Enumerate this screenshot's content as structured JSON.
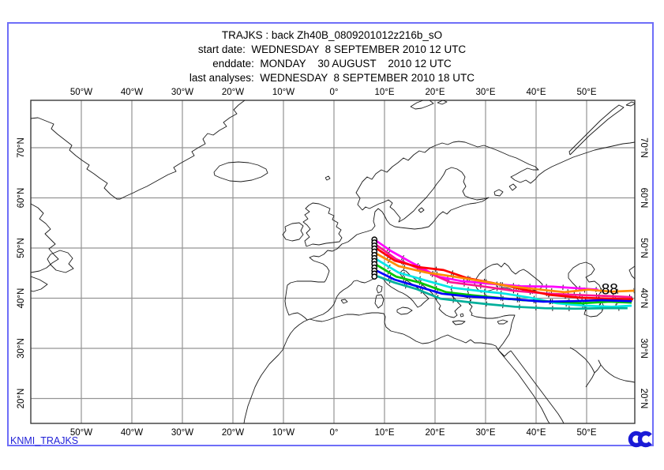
{
  "header": {
    "title": "TRAJKS : back Zh40B_0809201012z216b_sO",
    "start_date": "start date:  WEDNESDAY  8 SEPTEMBER 2010 12 UTC",
    "end_date": "enddate:  MONDAY    30 AUGUST    2010 12 UTC",
    "last_analyses": "last analyses:  WEDNESDAY  8 SEPTEMBER 2010 18 UTC"
  },
  "footer": {
    "model_id": "KNMI_TRAJKS",
    "logo_icon": "ecmwf-logo"
  },
  "colors": {
    "border": "#6e6ef8",
    "footer_text": "#1f1fd6",
    "grid": "#949494",
    "frame": "#3a3a3a",
    "coast": "#1a1a1a",
    "logo": "#1a1ad6",
    "tick_marks": "#111111"
  },
  "map": {
    "lon_ticks": [
      {
        "deg": -50,
        "label": "50°W"
      },
      {
        "deg": -40,
        "label": "40°W"
      },
      {
        "deg": -30,
        "label": "30°W"
      },
      {
        "deg": -20,
        "label": "20°W"
      },
      {
        "deg": -10,
        "label": "10°W"
      },
      {
        "deg": 0,
        "label": "0°"
      },
      {
        "deg": 10,
        "label": "10°E"
      },
      {
        "deg": 20,
        "label": "20°E"
      },
      {
        "deg": 30,
        "label": "30°E"
      },
      {
        "deg": 40,
        "label": "40°E"
      },
      {
        "deg": 50,
        "label": "50°E"
      }
    ],
    "lat_ticks": [
      {
        "deg": 70,
        "label": "70°N"
      },
      {
        "deg": 60,
        "label": "60°N"
      },
      {
        "deg": 50,
        "label": "50°N"
      },
      {
        "deg": 40,
        "label": "40°N"
      },
      {
        "deg": 30,
        "label": "30°N"
      },
      {
        "deg": 20,
        "label": "20°N"
      }
    ]
  },
  "chart_data": {
    "type": "trajectory-map",
    "title": "KNMI TRAJKS back trajectories, release near 8°E 44–52°N",
    "end_label": {
      "text": "88",
      "series": "traj-magenta"
    },
    "release_point": {
      "lon": 8.0,
      "lats": [
        51.7,
        51.1,
        50.5,
        49.9,
        49.3,
        48.6,
        48.0,
        47.4,
        46.8,
        46.1,
        45.5,
        44.9,
        44.3
      ]
    },
    "series": [
      {
        "name": "traj-magenta",
        "color": "#ff00ff",
        "points": [
          [
            8.0,
            51.7
          ],
          [
            11.3,
            49.4
          ],
          [
            15.2,
            47.2
          ],
          [
            20.6,
            44.3
          ],
          [
            25.3,
            43.4
          ],
          [
            30.8,
            42.9
          ],
          [
            37.0,
            42.4
          ],
          [
            43.3,
            42.3
          ],
          [
            48.0,
            42.0
          ],
          [
            52.3,
            41.7
          ]
        ]
      },
      {
        "name": "traj-pink",
        "color": "#ff1493",
        "points": [
          [
            8.0,
            50.9
          ],
          [
            12.3,
            47.8
          ],
          [
            17.5,
            45.6
          ],
          [
            23.0,
            43.2
          ],
          [
            29.2,
            42.4
          ],
          [
            35.5,
            41.5
          ],
          [
            42.5,
            40.9
          ],
          [
            49.5,
            40.6
          ],
          [
            55.0,
            40.4
          ],
          [
            58.9,
            40.2
          ]
        ]
      },
      {
        "name": "traj-red",
        "color": "#ff0000",
        "points": [
          [
            8.0,
            50.2
          ],
          [
            12.0,
            47.5
          ],
          [
            16.7,
            46.2
          ],
          [
            21.7,
            45.6
          ],
          [
            26.4,
            44.0
          ],
          [
            31.1,
            43.1
          ],
          [
            36.3,
            42.0
          ],
          [
            42.5,
            40.7
          ],
          [
            48.8,
            40.1
          ],
          [
            54.5,
            39.9
          ],
          [
            59.2,
            39.8
          ]
        ]
      },
      {
        "name": "traj-orange",
        "color": "#ff8c00",
        "points": [
          [
            8.0,
            49.1
          ],
          [
            12.8,
            46.4
          ],
          [
            18.3,
            45.1
          ],
          [
            23.8,
            44.3
          ],
          [
            29.2,
            43.4
          ],
          [
            34.7,
            42.4
          ],
          [
            40.9,
            41.7
          ],
          [
            45.6,
            41.2
          ],
          [
            50.3,
            41.7
          ],
          [
            55.0,
            41.3
          ],
          [
            59.4,
            41.5
          ]
        ]
      },
      {
        "name": "traj-cyan",
        "color": "#00e6e6",
        "points": [
          [
            8.0,
            48.0
          ],
          [
            12.8,
            45.1
          ],
          [
            18.3,
            43.5
          ],
          [
            23.3,
            42.1
          ],
          [
            28.4,
            41.5
          ],
          [
            33.9,
            40.9
          ],
          [
            38.9,
            40.1
          ],
          [
            44.1,
            39.0
          ],
          [
            49.5,
            38.5
          ],
          [
            55.0,
            38.3
          ],
          [
            58.9,
            38.5
          ]
        ]
      },
      {
        "name": "traj-green",
        "color": "#00c800",
        "points": [
          [
            8.0,
            46.9
          ],
          [
            12.3,
            44.3
          ],
          [
            17.0,
            43.1
          ],
          [
            22.2,
            41.2
          ],
          [
            27.3,
            40.6
          ],
          [
            32.3,
            40.1
          ],
          [
            37.3,
            39.6
          ],
          [
            43.3,
            39.3
          ],
          [
            49.2,
            39.0
          ],
          [
            54.5,
            39.3
          ],
          [
            58.9,
            39.1
          ]
        ]
      },
      {
        "name": "traj-blue",
        "color": "#0000ff",
        "points": [
          [
            8.0,
            45.7
          ],
          [
            12.0,
            43.7
          ],
          [
            16.4,
            42.4
          ],
          [
            21.4,
            40.9
          ],
          [
            26.1,
            40.4
          ],
          [
            30.8,
            40.1
          ],
          [
            35.5,
            39.8
          ],
          [
            41.4,
            39.3
          ],
          [
            47.2,
            39.4
          ],
          [
            53.0,
            39.6
          ],
          [
            58.9,
            39.4
          ]
        ]
      },
      {
        "name": "traj-teal",
        "color": "#00af9b",
        "points": [
          [
            8.0,
            44.6
          ],
          [
            12.0,
            43.1
          ],
          [
            16.4,
            41.8
          ],
          [
            21.1,
            39.9
          ],
          [
            25.8,
            39.3
          ],
          [
            30.5,
            38.8
          ],
          [
            35.8,
            38.3
          ],
          [
            41.7,
            38.0
          ],
          [
            47.7,
            37.9
          ],
          [
            53.4,
            38.0
          ],
          [
            58.1,
            38.0
          ]
        ]
      }
    ]
  }
}
